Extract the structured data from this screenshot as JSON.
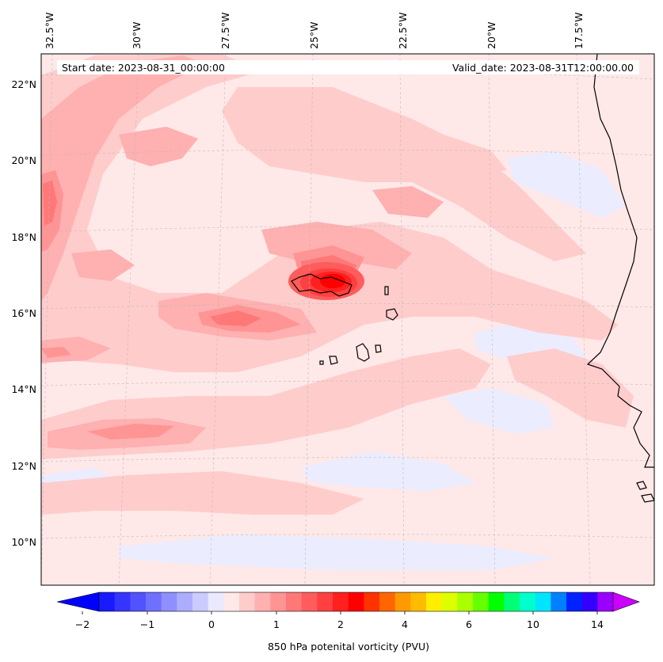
{
  "header": {
    "start_label": "Start date: 2023-08-31_00:00:00",
    "valid_label": "Valid_date: 2023-08-31T12:00:00.00"
  },
  "axes": {
    "lon_labels": [
      "32.5°W",
      "30°W",
      "27.5°W",
      "25°W",
      "22.5°W",
      "20°W",
      "17.5°W"
    ],
    "lat_labels": [
      "22°N",
      "20°N",
      "18°N",
      "16°N",
      "14°N",
      "12°N",
      "10°N"
    ]
  },
  "colorbar": {
    "label": "850 hPa potenital vorticity (PVU)",
    "tick_labels": [
      "−2",
      "−1",
      "0",
      "1",
      "2",
      "4",
      "6",
      "10",
      "14"
    ],
    "colors": [
      "#1a1aff",
      "#3535ff",
      "#5252ff",
      "#7070ff",
      "#8f8fff",
      "#adadff",
      "#cbcbff",
      "#e9e9ff",
      "#ffe8e8",
      "#ffcccc",
      "#ffb0b0",
      "#ff9494",
      "#ff7878",
      "#ff5c5c",
      "#ff4040",
      "#ff2020",
      "#ff0000",
      "#ff3300",
      "#ff6600",
      "#ff9900",
      "#ffbb00",
      "#ffee00",
      "#ddff00",
      "#aaff00",
      "#66ff00",
      "#00ff00",
      "#00ff77",
      "#00ffcc",
      "#00e5ff",
      "#0080ff",
      "#0022ff",
      "#3300ff",
      "#9900ff"
    ],
    "low_extend": "#0000ff",
    "high_extend": "#cc00ff"
  }
}
